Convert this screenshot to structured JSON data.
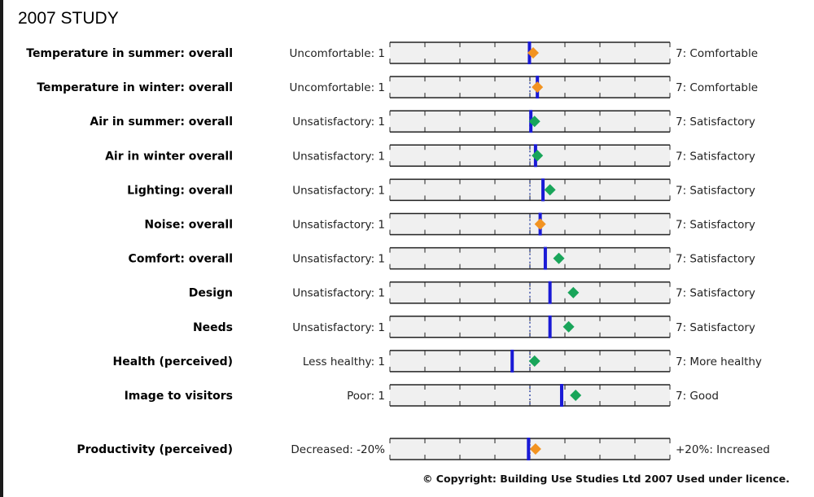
{
  "title": "2007 STUDY",
  "copyright": "© Copyright: Building Use Studies Ltd 2007 Used under licence.",
  "colors": {
    "benchmark_line": "#1a1ad6",
    "diamond_orange": "#f29321",
    "diamond_green": "#19a55a",
    "track_fill": "#f0f0f0",
    "track_border": "#222222",
    "midline": "#3b4fa8"
  },
  "chart_data": {
    "type": "scatter",
    "scale": {
      "min": 1,
      "max": 7,
      "ticks": [
        1,
        1.75,
        2.5,
        3.25,
        4,
        4.75,
        5.5,
        6.25,
        7
      ]
    },
    "rows": [
      {
        "label": "Temperature in summer: overall",
        "left": "Uncomfortable: 1",
        "right": "7: Comfortable",
        "benchmark": 3.99,
        "score": 4.07,
        "color": "orange"
      },
      {
        "label": "Temperature in winter: overall",
        "left": "Uncomfortable: 1",
        "right": "7: Comfortable",
        "benchmark": 4.16,
        "score": 4.16,
        "color": "orange"
      },
      {
        "label": "Air in summer: overall",
        "left": "Unsatisfactory: 1",
        "right": "7: Satisfactory",
        "benchmark": 4.02,
        "score": 4.1,
        "color": "green"
      },
      {
        "label": "Air in winter overall",
        "left": "Unsatisfactory: 1",
        "right": "7: Satisfactory",
        "benchmark": 4.12,
        "score": 4.16,
        "color": "green"
      },
      {
        "label": "Lighting: overall",
        "left": "Unsatisfactory: 1",
        "right": "7: Satisfactory",
        "benchmark": 4.28,
        "score": 4.43,
        "color": "green"
      },
      {
        "label": "Noise: overall",
        "left": "Unsatisfactory: 1",
        "right": "7: Satisfactory",
        "benchmark": 4.22,
        "score": 4.22,
        "color": "orange"
      },
      {
        "label": "Comfort: overall",
        "left": "Unsatisfactory: 1",
        "right": "7: Satisfactory",
        "benchmark": 4.33,
        "score": 4.62,
        "color": "green"
      },
      {
        "label": "Design",
        "left": "Unsatisfactory: 1",
        "right": "7: Satisfactory",
        "benchmark": 4.43,
        "score": 4.93,
        "color": "green"
      },
      {
        "label": "Needs",
        "left": "Unsatisfactory: 1",
        "right": "7: Satisfactory",
        "benchmark": 4.43,
        "score": 4.83,
        "color": "green"
      },
      {
        "label": "Health (perceived)",
        "left": "Less healthy: 1",
        "right": "7: More healthy",
        "benchmark": 3.62,
        "score": 4.1,
        "color": "green"
      },
      {
        "label": "Image to visitors",
        "left": "Poor: 1",
        "right": "7: Good",
        "benchmark": 4.68,
        "score": 4.98,
        "color": "green"
      }
    ],
    "productivity": {
      "label": "Productivity (perceived)",
      "left": "Decreased: -20%",
      "right": "+20%: Increased",
      "min": -20,
      "max": 20,
      "benchmark": -0.2,
      "score": 0.8,
      "color": "orange"
    }
  }
}
